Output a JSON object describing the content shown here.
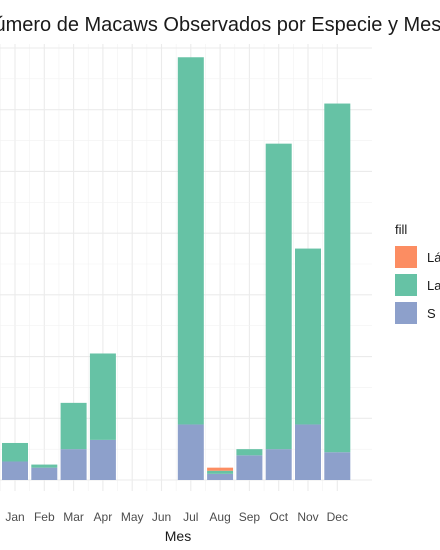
{
  "chart_data": {
    "type": "bar",
    "stacked": true,
    "title": "Número de Macaws Observados por Especie y Mes",
    "xlabel": "Mes",
    "ylabel": "",
    "categories": [
      "Jan",
      "Feb",
      "Mar",
      "Apr",
      "May",
      "Jun",
      "Jul",
      "Aug",
      "Sep",
      "Oct",
      "Nov",
      "Dec"
    ],
    "series": [
      {
        "name": "Lá",
        "color": "#fc8d62",
        "values": [
          0,
          0,
          0,
          0,
          0,
          0,
          0,
          0.5,
          0,
          0,
          0,
          0
        ]
      },
      {
        "name": "La",
        "color": "#66c2a5",
        "values": [
          3,
          0.5,
          7.5,
          14,
          0,
          0,
          59.5,
          0.5,
          1,
          49.5,
          28.5,
          56.5
        ]
      },
      {
        "name": "S",
        "color": "#8da0cb",
        "values": [
          3,
          2,
          5,
          6.5,
          0,
          0,
          9,
          1,
          4,
          5,
          9,
          4.5
        ]
      }
    ],
    "ylim": [
      0,
      70
    ],
    "grid": true,
    "legend": {
      "title": "fill",
      "position": "right"
    }
  }
}
